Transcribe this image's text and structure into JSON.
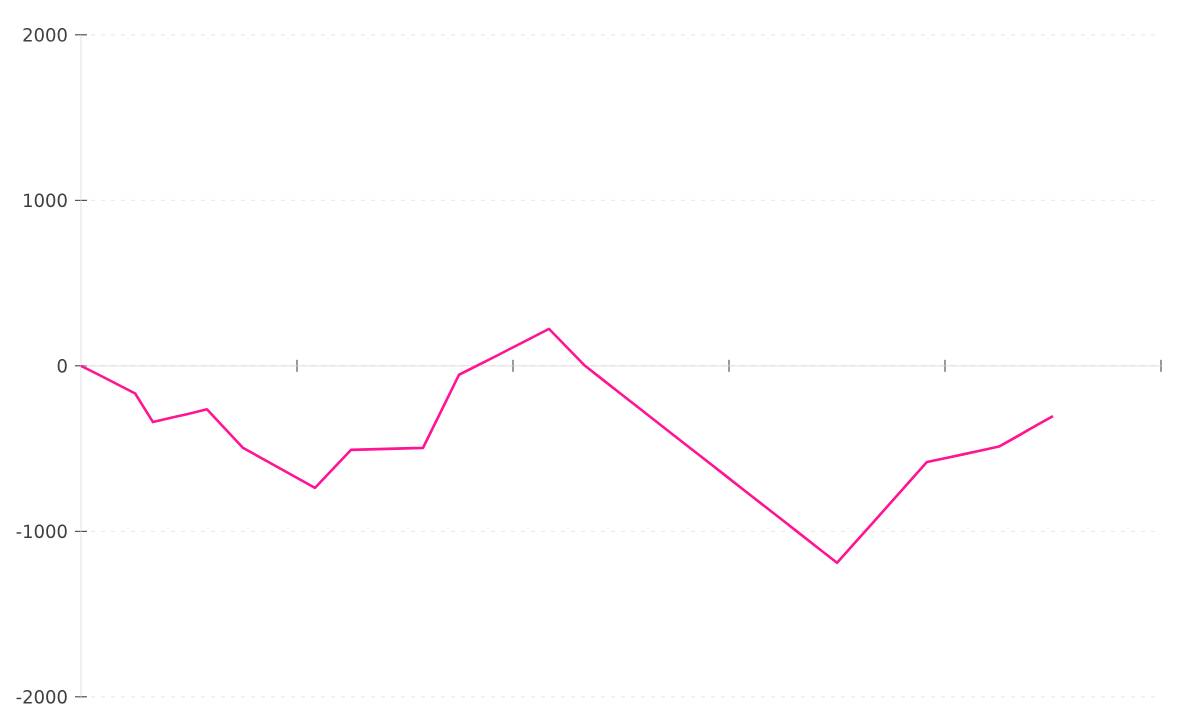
{
  "chart_data": {
    "type": "line",
    "categories": [
      null,
      null,
      null,
      null,
      null,
      null,
      null,
      null,
      null,
      null,
      null,
      null,
      null,
      null,
      null,
      null,
      null,
      null,
      null,
      null,
      null,
      null,
      null,
      null,
      null,
      null,
      null,
      null,
      null,
      null,
      null,
      null,
      null,
      null,
      null,
      null,
      null,
      null,
      null,
      null,
      null,
      null,
      null,
      null,
      null,
      null,
      null,
      null,
      null,
      null,
      null,
      null,
      null,
      null,
      null,
      null,
      null,
      null,
      null,
      null,
      null
    ],
    "series": [
      {
        "color": "#ff1493",
        "values": [
          0,
          -55,
          -111,
          -166,
          -340,
          -314,
          -289,
          -263,
          -380,
          -496,
          -556,
          -616,
          -677,
          -737,
          -623,
          -508,
          -505,
          -502,
          -499,
          -496,
          -275,
          -54,
          1,
          56,
          112,
          167,
          223,
          112,
          0,
          -85,
          -170,
          -255,
          -340,
          -425,
          -510,
          -595,
          -680,
          -765,
          -850,
          -935,
          -1020,
          -1105,
          -1190,
          -1068,
          -947,
          -825,
          -703,
          -581,
          -558,
          -535,
          -511,
          -488,
          -427,
          -365,
          -304,
          null,
          null,
          null,
          null,
          null,
          null
        ]
      }
    ],
    "ylim": [
      -2000,
      2000
    ],
    "yticks": [
      -2000,
      -1000,
      0,
      1000,
      2000
    ],
    "grid": "y",
    "tick_labels": "y",
    "marker": "none",
    "line_style": "solid"
  }
}
